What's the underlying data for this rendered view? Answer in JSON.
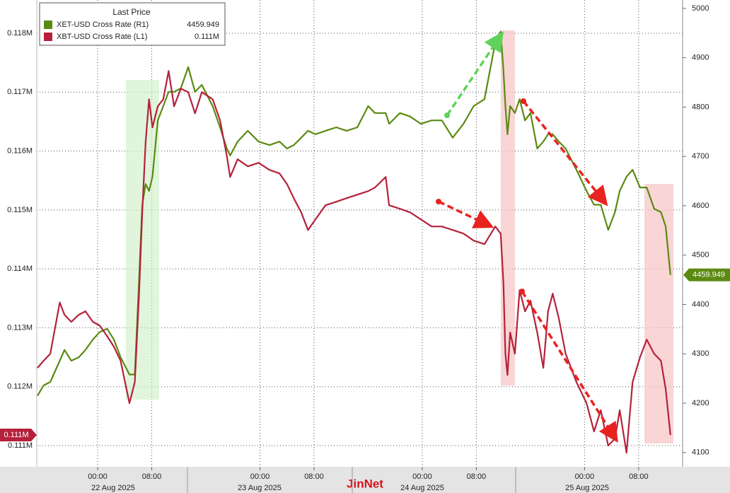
{
  "chart_data": {
    "type": "line",
    "legend_title": "Last Price",
    "watermark": "JinNet",
    "x": [
      -8.9,
      -8.0,
      -7.0,
      -5.6,
      -4.9,
      -3.9,
      -2.8,
      -1.8,
      -0.7,
      0.3,
      1.4,
      2.4,
      3.4,
      4.7,
      5.5,
      6.1,
      6.6,
      7.1,
      7.6,
      8.1,
      8.9,
      9.7,
      10.5,
      11.3,
      12.3,
      13.4,
      14.4,
      15.4,
      17.0,
      18.1,
      19.1,
      19.6,
      20.7,
      22.2,
      23.8,
      25.4,
      26.9,
      28.0,
      29.0,
      30.1,
      31.1,
      32.2,
      33.7,
      35.3,
      36.8,
      38.4,
      40.0,
      41.0,
      42.6,
      43.1,
      44.7,
      46.2,
      47.8,
      49.4,
      50.9,
      52.5,
      54.1,
      55.6,
      57.2,
      58.8,
      59.6,
      60.0,
      60.3,
      60.6,
      61.0,
      61.7,
      62.4,
      63.2,
      64.0,
      65.0,
      65.9,
      66.6,
      67.3,
      68.2,
      69.2,
      70.8,
      72.3,
      73.4,
      74.4,
      75.5,
      76.5,
      77.2,
      78.2,
      79.1,
      80.2,
      81.2,
      82.3,
      83.3,
      84.0,
      84.7
    ],
    "series": [
      {
        "name": "XET-USD Cross Rate (R1)",
        "color": "#5b8a12",
        "axis": "y2",
        "last_label": "4459.949",
        "values": [
          4215,
          4236,
          4243,
          4286,
          4308,
          4286,
          4293,
          4308,
          4329,
          4344,
          4351,
          4329,
          4293,
          4258,
          4258,
          4444,
          4602,
          4644,
          4630,
          4659,
          4773,
          4802,
          4831,
          4831,
          4838,
          4881,
          4831,
          4845,
          4802,
          4759,
          4716,
          4702,
          4730,
          4752,
          4730,
          4723,
          4730,
          4716,
          4723,
          4738,
          4752,
          4745,
          4752,
          4759,
          4752,
          4759,
          4802,
          4788,
          4788,
          4766,
          4788,
          4781,
          4766,
          4773,
          4773,
          4738,
          4766,
          4802,
          4816,
          4931,
          4953,
          4874,
          4802,
          4745,
          4802,
          4788,
          4816,
          4773,
          4788,
          4716,
          4730,
          4745,
          4745,
          4730,
          4716,
          4673,
          4630,
          4602,
          4602,
          4551,
          4587,
          4630,
          4659,
          4673,
          4637,
          4637,
          4594,
          4587,
          4558,
          4459.949
        ]
      },
      {
        "name": "XBT-USD Cross Rate (L1)",
        "color": "#b5213b",
        "last_label": "0.111M",
        "values": [
          112320,
          112440,
          112560,
          113430,
          113220,
          113100,
          113220,
          113280,
          113100,
          113040,
          112860,
          112680,
          112440,
          111720,
          112080,
          113520,
          114960,
          116160,
          116880,
          116400,
          116760,
          116880,
          117360,
          116760,
          117060,
          117000,
          116640,
          117000,
          116880,
          116520,
          115920,
          115560,
          115860,
          115740,
          115800,
          115680,
          115620,
          115440,
          115200,
          114960,
          114660,
          114840,
          115080,
          115140,
          115200,
          115260,
          115320,
          115380,
          115560,
          115080,
          115020,
          114960,
          114840,
          114720,
          114720,
          114660,
          114600,
          114480,
          114420,
          114720,
          114600,
          113760,
          112560,
          112200,
          112920,
          112560,
          113640,
          113280,
          113460,
          112920,
          112320,
          113280,
          113580,
          113160,
          112560,
          112080,
          111720,
          111240,
          111600,
          111000,
          111120,
          111600,
          110880,
          112080,
          112500,
          112800,
          112560,
          112440,
          111960,
          111180
        ]
      }
    ],
    "xlim": [
      -9,
      86.5
    ],
    "xticks": [
      {
        "value": 0,
        "label": "00:00"
      },
      {
        "value": 8,
        "label": "08:00"
      },
      {
        "value": 24,
        "label": "00:00"
      },
      {
        "value": 32,
        "label": "08:00"
      },
      {
        "value": 48,
        "label": "00:00"
      },
      {
        "value": 56,
        "label": "08:00"
      },
      {
        "value": 72,
        "label": "00:00"
      },
      {
        "value": 80,
        "label": "08:00"
      }
    ],
    "dates": [
      "22 Aug 2025",
      "23 Aug 2025",
      "24 Aug 2025",
      "25 Aug 2025"
    ],
    "ylim": [
      110640,
      118564
    ],
    "yticks": [
      {
        "value": 111000,
        "label": "0.111M"
      },
      {
        "value": 112000,
        "label": "0.112M"
      },
      {
        "value": 113000,
        "label": "0.113M"
      },
      {
        "value": 114000,
        "label": "0.114M"
      },
      {
        "value": 115000,
        "label": "0.115M"
      },
      {
        "value": 116000,
        "label": "0.116M"
      },
      {
        "value": 117000,
        "label": "0.117M"
      },
      {
        "value": 118000,
        "label": "0.118M"
      }
    ],
    "y2lim": [
      4071,
      5017
    ],
    "y2ticks": [
      4100,
      4200,
      4300,
      4400,
      4500,
      4600,
      4700,
      4800,
      4900,
      5000
    ],
    "grid": true
  }
}
